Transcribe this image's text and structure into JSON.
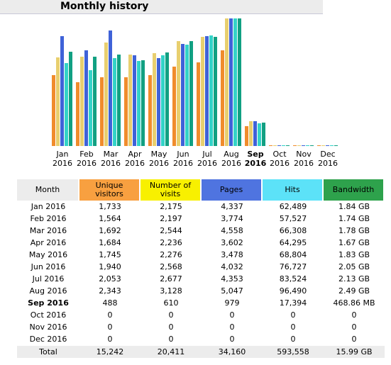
{
  "header": {
    "title": "Monthly history"
  },
  "colors": {
    "unique": "#f08c2c",
    "visits": "#e8cf6f",
    "pages": "#3f62d8",
    "hits": "#33d3c8",
    "bandwidth": "#11a082"
  },
  "chart_data": {
    "type": "bar",
    "categories": [
      "Jan",
      "Feb",
      "Mar",
      "Apr",
      "May",
      "Jun",
      "Jul",
      "Aug",
      "Sep",
      "Oct",
      "Nov",
      "Dec"
    ],
    "years": [
      "2016",
      "2016",
      "2016",
      "2016",
      "2016",
      "2016",
      "2016",
      "2016",
      "2016",
      "2016",
      "2016",
      "2016"
    ],
    "highlight_index": 8,
    "series": [
      {
        "name": "Unique visitors",
        "values": [
          1733,
          1564,
          1692,
          1684,
          1745,
          1940,
          2053,
          2343,
          488,
          0,
          0,
          0
        ]
      },
      {
        "name": "Number of visits",
        "values": [
          2175,
          2197,
          2544,
          2236,
          2276,
          2568,
          2677,
          3128,
          610,
          0,
          0,
          0
        ]
      },
      {
        "name": "Pages",
        "values": [
          4337,
          3774,
          4558,
          3602,
          3478,
          4032,
          4353,
          5047,
          979,
          0,
          0,
          0
        ]
      },
      {
        "name": "Hits",
        "values": [
          62489,
          57527,
          66308,
          64295,
          68804,
          76727,
          83524,
          96490,
          17394,
          0,
          0,
          0
        ]
      },
      {
        "name": "Bandwidth",
        "values": [
          1.84,
          1.74,
          1.78,
          1.67,
          1.83,
          2.05,
          2.13,
          2.49,
          0.46,
          0,
          0,
          0
        ]
      }
    ]
  },
  "table": {
    "headers": [
      "Month",
      "Unique visitors",
      "Number of visits",
      "Pages",
      "Hits",
      "Bandwidth"
    ],
    "rows": [
      [
        "Jan 2016",
        "1,733",
        "2,175",
        "4,337",
        "62,489",
        "1.84 GB"
      ],
      [
        "Feb 2016",
        "1,564",
        "2,197",
        "3,774",
        "57,527",
        "1.74 GB"
      ],
      [
        "Mar 2016",
        "1,692",
        "2,544",
        "4,558",
        "66,308",
        "1.78 GB"
      ],
      [
        "Apr 2016",
        "1,684",
        "2,236",
        "3,602",
        "64,295",
        "1.67 GB"
      ],
      [
        "May 2016",
        "1,745",
        "2,276",
        "3,478",
        "68,804",
        "1.83 GB"
      ],
      [
        "Jun 2016",
        "1,940",
        "2,568",
        "4,032",
        "76,727",
        "2.05 GB"
      ],
      [
        "Jul 2016",
        "2,053",
        "2,677",
        "4,353",
        "83,524",
        "2.13 GB"
      ],
      [
        "Aug 2016",
        "2,343",
        "3,128",
        "5,047",
        "96,490",
        "2.49 GB"
      ],
      [
        "Sep 2016",
        "488",
        "610",
        "979",
        "17,394",
        "468.86 MB"
      ],
      [
        "Oct 2016",
        "0",
        "0",
        "0",
        "0",
        "0"
      ],
      [
        "Nov 2016",
        "0",
        "0",
        "0",
        "0",
        "0"
      ],
      [
        "Dec 2016",
        "0",
        "0",
        "0",
        "0",
        "0"
      ]
    ],
    "total": [
      "Total",
      "15,242",
      "20,411",
      "34,160",
      "593,558",
      "15.99 GB"
    ]
  }
}
